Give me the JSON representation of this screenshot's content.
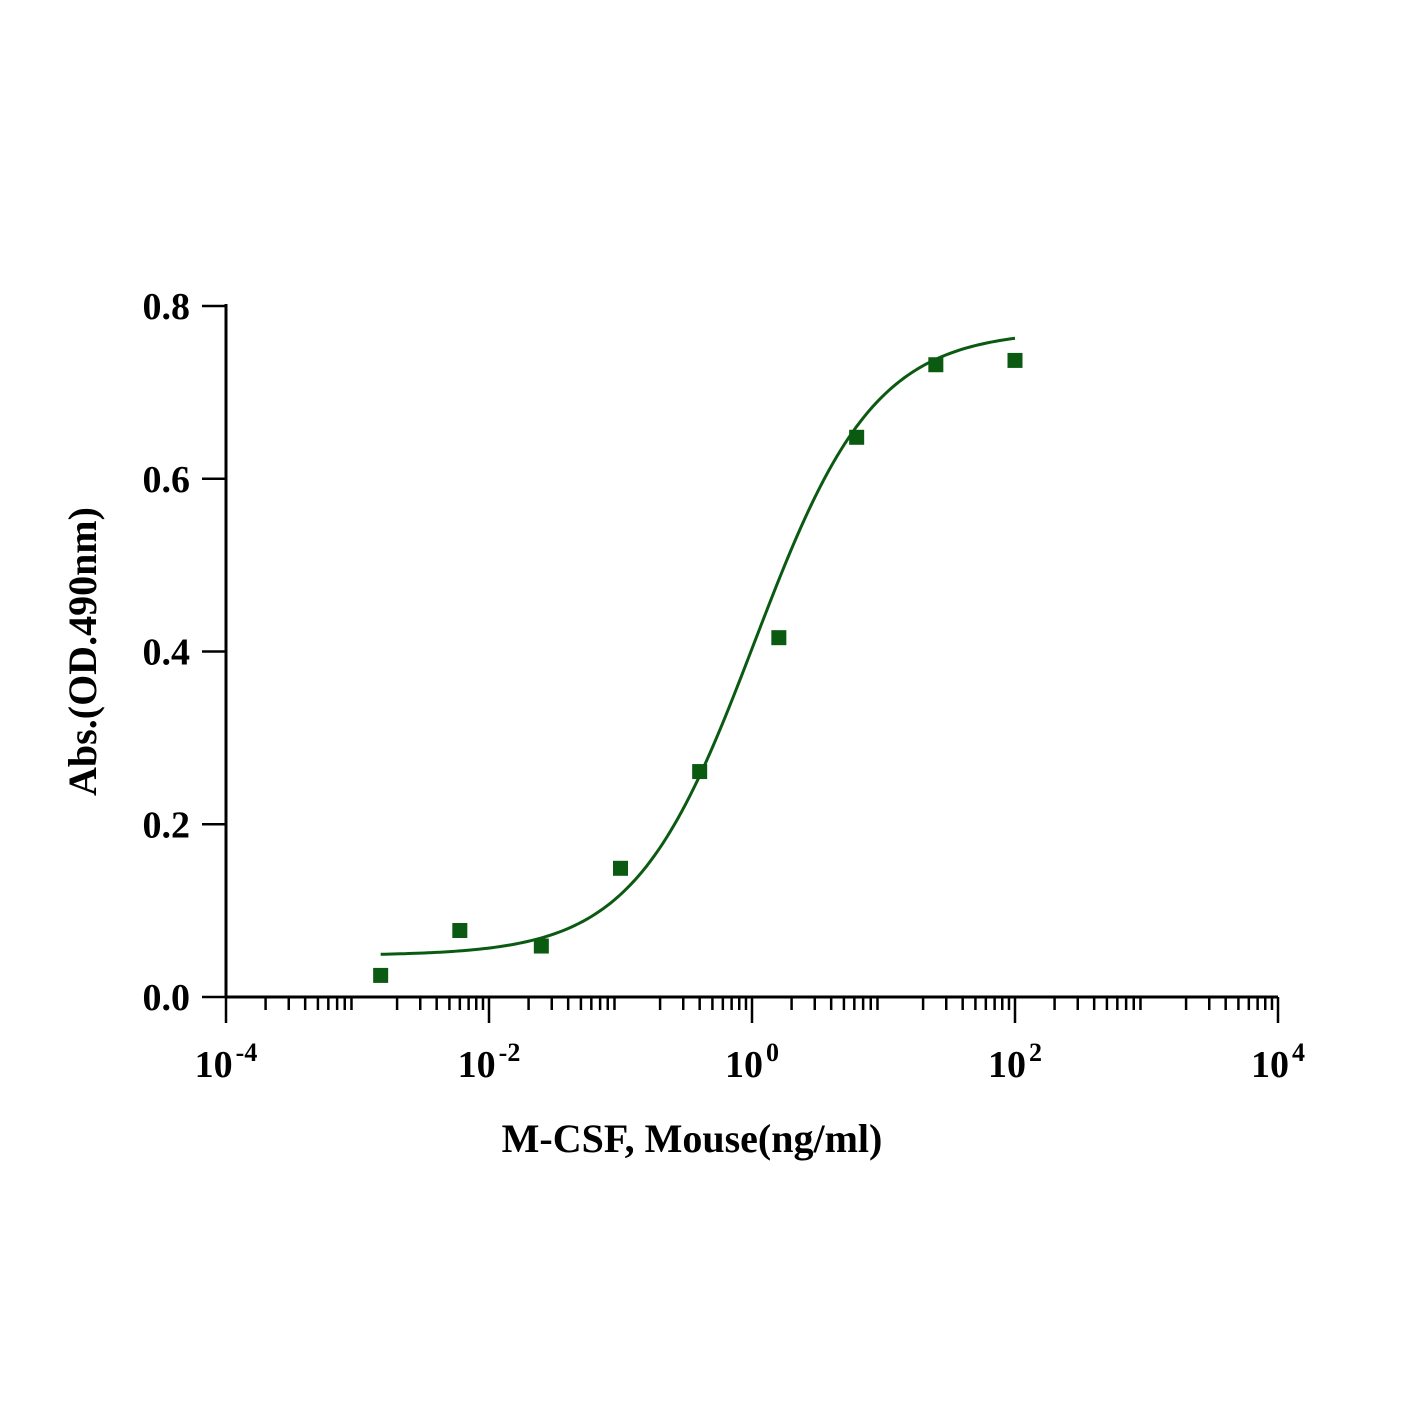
{
  "chart_data": {
    "type": "scatter",
    "x_scale": "log",
    "y_scale": "linear",
    "xlabel": "M-CSF, Mouse(ng/ml)",
    "ylabel": "Abs.(OD.490nm)",
    "xlim": [
      0.0001,
      10000
    ],
    "ylim": [
      0,
      0.8
    ],
    "x_ticks": [
      {
        "value": 0.0001,
        "base": "10",
        "exp": "-4"
      },
      {
        "value": 0.01,
        "base": "10",
        "exp": "-2"
      },
      {
        "value": 1,
        "base": "10",
        "exp": "0"
      },
      {
        "value": 100,
        "base": "10",
        "exp": "2"
      },
      {
        "value": 10000,
        "base": "10",
        "exp": "4"
      }
    ],
    "y_ticks": [
      {
        "value": 0.0,
        "label": "0.0"
      },
      {
        "value": 0.2,
        "label": "0.2"
      },
      {
        "value": 0.4,
        "label": "0.4"
      },
      {
        "value": 0.6,
        "label": "0.6"
      },
      {
        "value": 0.8,
        "label": "0.8"
      }
    ],
    "grid": false,
    "marker_color": "#0b5a12",
    "curve_color": "#0b5a12",
    "series": [
      {
        "marker": "square",
        "x": [
          0.0015,
          0.006,
          0.025,
          0.1,
          0.4,
          1.6,
          6.25,
          25,
          100
        ],
        "y": [
          0.025,
          0.077,
          0.059,
          0.149,
          0.261,
          0.416,
          0.648,
          0.732,
          0.737
        ]
      }
    ],
    "fit_curve": {
      "model": "4PL",
      "bottom": 0.048,
      "top": 0.772,
      "ec50": 1.04,
      "hill": 0.95,
      "x_range": [
        0.0015,
        100
      ]
    }
  }
}
